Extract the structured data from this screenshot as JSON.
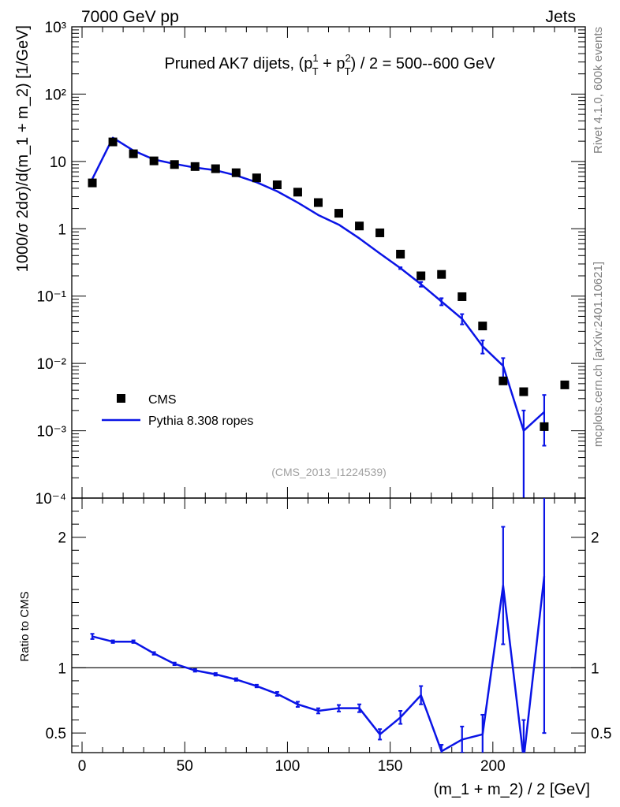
{
  "header": {
    "left": "7000 GeV pp",
    "right": "Jets",
    "side_top": "Rivet 4.1.0,  600k events",
    "side_bottom": "mcplots.cern.ch [arXiv:2401.10621]",
    "analysis_id": "(CMS_2013_I1224539)"
  },
  "colors": {
    "data": "#000000",
    "mc": "#0a14e6",
    "axis": "#000000",
    "side_text": "#808080"
  },
  "chart_data": [
    {
      "type": "scatter",
      "name": "main",
      "title": "Pruned AK7 dijets, (p_T^1 + p_T^2) / 2 = 500--600 GeV",
      "title_parts": {
        "lead": "Pruned AK7 dijets, (p",
        "sub": "T",
        "sup1": "1",
        "sup2": "2",
        "plus": " + p",
        "tail": ") / 2 = 500--600 GeV"
      },
      "ylabel": "1000/σ   2dσ)/d(m_1 + m_2) [1/GeV]",
      "xlim": [
        -5,
        245
      ],
      "ylim": [
        0.0001,
        1000
      ],
      "yscale": "log",
      "ytick_labels": [
        "10⁻⁴",
        "10⁻³",
        "10⁻²",
        "10⁻¹",
        "1",
        "10",
        "10²",
        "10³"
      ],
      "legend": {
        "placement": "lower-left",
        "entries": [
          "CMS",
          "Pythia 8.308 ropes"
        ]
      },
      "series": [
        {
          "name": "CMS",
          "style": "markers",
          "x": [
            5,
            15,
            25,
            35,
            45,
            55,
            65,
            75,
            85,
            95,
            105,
            115,
            125,
            135,
            145,
            155,
            165,
            175,
            185,
            195,
            205,
            215,
            225,
            235
          ],
          "y": [
            4.8,
            19.5,
            13,
            10.2,
            9.0,
            8.4,
            7.8,
            6.8,
            5.7,
            4.5,
            3.5,
            2.45,
            1.7,
            1.1,
            0.87,
            0.42,
            0.2,
            0.21,
            0.098,
            0.036,
            0.0055,
            0.0038,
            0.00115,
            0.0048
          ]
        },
        {
          "name": "Pythia 8.308 ropes",
          "style": "line",
          "x": [
            5,
            15,
            25,
            35,
            45,
            55,
            65,
            75,
            85,
            95,
            105,
            115,
            125,
            135,
            145,
            155,
            165,
            175,
            185,
            195,
            205,
            215,
            225
          ],
          "y": [
            5.5,
            22.5,
            14.5,
            10.7,
            9.2,
            8.1,
            7.4,
            6.2,
            4.9,
            3.6,
            2.45,
            1.6,
            1.15,
            0.72,
            0.43,
            0.26,
            0.15,
            0.083,
            0.046,
            0.018,
            0.0092,
            0.001,
            0.0019
          ],
          "err_lo": [
            0.05,
            0.2,
            0.12,
            0.1,
            0.08,
            0.07,
            0.07,
            0.06,
            0.05,
            0.04,
            0.03,
            0.02,
            0.015,
            0.012,
            0.01,
            0.008,
            0.012,
            0.01,
            0.008,
            0.004,
            0.0035,
            0.00099,
            0.0013
          ],
          "err_hi": [
            0.05,
            0.2,
            0.12,
            0.1,
            0.08,
            0.07,
            0.07,
            0.06,
            0.05,
            0.04,
            0.03,
            0.02,
            0.015,
            0.012,
            0.01,
            0.008,
            0.012,
            0.01,
            0.008,
            0.004,
            0.0028,
            0.001,
            0.0015
          ]
        }
      ]
    },
    {
      "type": "line",
      "name": "ratio",
      "ylabel": "Ratio to CMS",
      "xlabel": "(m_1 + m_2) / 2 [GeV]",
      "xlim": [
        -5,
        245
      ],
      "ylim": [
        0.35,
        2.3
      ],
      "reference_line": 1,
      "ytick_labels": [
        "0.5",
        "1",
        "2"
      ],
      "xtick_labels": [
        "0",
        "50",
        "100",
        "150",
        "200"
      ],
      "series": [
        {
          "name": "Pythia 8.308 ropes / CMS",
          "x": [
            5,
            15,
            25,
            35,
            45,
            55,
            65,
            75,
            85,
            95,
            105,
            115,
            125,
            135,
            145,
            155,
            165,
            175,
            185,
            195,
            205,
            215,
            225
          ],
          "y": [
            1.24,
            1.2,
            1.2,
            1.11,
            1.03,
            0.98,
            0.95,
            0.91,
            0.86,
            0.8,
            0.72,
            0.67,
            0.69,
            0.69,
            0.49,
            0.62,
            0.79,
            0.36,
            0.45,
            0.49,
            1.63,
            0.3,
            1.7
          ],
          "err": [
            0.02,
            0.01,
            0.01,
            0.01,
            0.01,
            0.01,
            0.01,
            0.01,
            0.01,
            0.015,
            0.02,
            0.02,
            0.025,
            0.03,
            0.04,
            0.05,
            0.07,
            0.05,
            0.1,
            0.15,
            0.45,
            0.3,
            1.2
          ]
        }
      ]
    }
  ]
}
